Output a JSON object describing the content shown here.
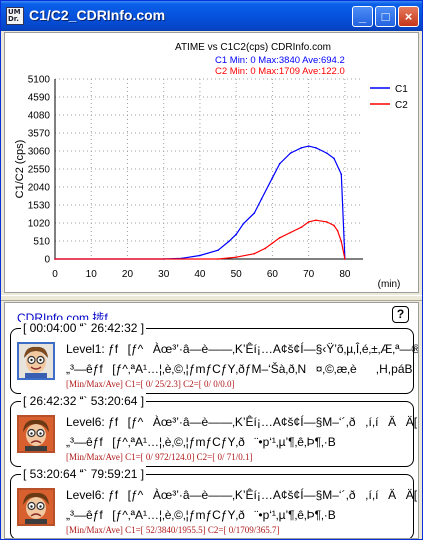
{
  "window": {
    "title": "C1/C2_CDRInfo.com",
    "icon_text": "UM Dr.",
    "buttons": {
      "minimize": "_",
      "maximize": "□",
      "close": "×"
    }
  },
  "chart_data": {
    "type": "line",
    "title": "ATIME vs C1C2(cps)  CDRInfo.com",
    "xlabel": "(min)",
    "ylabel": "C1/C2 (cps)",
    "xlim": [
      0,
      85
    ],
    "ylim": [
      0,
      5100
    ],
    "x_ticks": [
      0,
      10,
      20,
      30,
      40,
      50,
      60,
      70,
      80
    ],
    "y_ticks": [
      0,
      510,
      1020,
      1530,
      2040,
      2550,
      3060,
      3570,
      4080,
      4590,
      5100
    ],
    "grid": true,
    "legend_position": "top-right",
    "stats": [
      {
        "series": "C1",
        "text": "C1 Min:   0 Max:3840 Ave:694.2",
        "color": "#0000FF"
      },
      {
        "series": "C2",
        "text": "C2 Min:   0 Max:1709 Ave:122.0",
        "color": "#FF0000"
      }
    ],
    "series": [
      {
        "name": "C1",
        "color": "#0000FF",
        "x": [
          0,
          30,
          35,
          40,
          45,
          48,
          50,
          52,
          55,
          57,
          60,
          62,
          65,
          68,
          70,
          72,
          75,
          77,
          79,
          80
        ],
        "y": [
          0,
          0,
          20,
          100,
          250,
          500,
          700,
          1000,
          1300,
          1700,
          2300,
          2700,
          3000,
          3150,
          3200,
          3150,
          3000,
          2850,
          2400,
          0
        ]
      },
      {
        "name": "C2",
        "color": "#FF0000",
        "x": [
          0,
          45,
          50,
          55,
          58,
          60,
          62,
          65,
          68,
          70,
          72,
          75,
          77,
          78,
          79,
          80
        ],
        "y": [
          0,
          0,
          50,
          150,
          300,
          450,
          600,
          750,
          900,
          1050,
          1100,
          1050,
          950,
          800,
          500,
          0
        ]
      }
    ]
  },
  "list": {
    "header": "CDRInfo.com 捗f",
    "help": "?",
    "entries": [
      {
        "time": "[ 00:04:00 ` 26:42:32 ]",
        "level": "Level1: ƒf[ƒ^Àœ³’·â—è——‚K’Êí¡…A¢š¢Í—§‹Ÿ’õ‚µ‚Î‚é‚±‚Æ‚ª—®‚è‚Ü‚·B",
        "desc": "„³—êƒf[ƒ^‚ªA¹…¦‚è‚©‚¦ƒmƒCƒY‚ðƒM–‘Šà‚ð‚N¤‚©‚æ‚è,H,páB",
        "stats": "[Min/Max/Ave] C1=[    0/   25/2.3] C2=[    0/    0/0.0]",
        "avatar": "smiling-face"
      },
      {
        "time": "[ 26:42:32 ` 53:20:64 ]",
        "level": "Level6: ƒf[ƒ^Àœ³’·â—è——‚K’Êí¡…A¢š¢Í—§M–‘´,ð,í,íÄÄ[ÆE,·B",
        "desc": "„³—êƒf[ƒ^‚ªA¹…¦‚è‚©‚¦ƒmƒCƒY‚ð¨•p‘¹‚µ’¶‚ê‚Þ¶‚·B",
        "stats": "[Min/Max/Ave] C1=[    0/  972/124.0] C2=[    0/   71/0.1]",
        "avatar": "worried-face"
      },
      {
        "time": "[ 53:20:64 ` 79:59:21 ]",
        "level": "Level6: ƒf[ƒ^Àœ³’·â—è——‚K’Êí¡…A¢š¢Í—§M–‘´,ð,í,íÄÄ[ÆE,·B",
        "desc": "„³—êƒf[ƒ^‚ªA¹…¦‚è‚©‚¦ƒmƒCƒY‚ð¨•p‘¹‚µ’¶‚ê‚Þ¶‚·B",
        "stats": "[Min/Max/Ave] C1=[  52/3840/1955.5] C2=[    0/1709/365.7]",
        "avatar": "worried-face"
      }
    ]
  }
}
